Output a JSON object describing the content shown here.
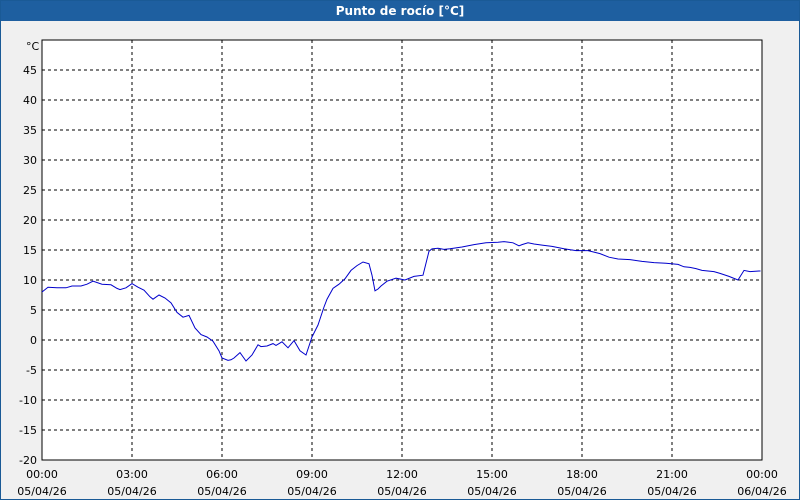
{
  "window": {
    "title": "Punto de rocío [°C]"
  },
  "chart_data": {
    "type": "line",
    "title": "Punto de rocío [°C]",
    "ylabel": "°C",
    "xlabel": "",
    "ylim": [
      -20,
      50
    ],
    "xlim": [
      0,
      24
    ],
    "y_ticks": [
      -20,
      -15,
      -10,
      -5,
      0,
      5,
      10,
      15,
      20,
      25,
      30,
      35,
      40,
      45
    ],
    "x_ticks": [
      {
        "time": "00:00",
        "date": "05/04/26"
      },
      {
        "time": "03:00",
        "date": "05/04/26"
      },
      {
        "time": "06:00",
        "date": "05/04/26"
      },
      {
        "time": "09:00",
        "date": "05/04/26"
      },
      {
        "time": "12:00",
        "date": "05/04/26"
      },
      {
        "time": "15:00",
        "date": "05/04/26"
      },
      {
        "time": "18:00",
        "date": "05/04/26"
      },
      {
        "time": "21:00",
        "date": "05/04/26"
      },
      {
        "time": "00:00",
        "date": "06/04/26"
      }
    ],
    "grid": true,
    "line_color": "#0000cc",
    "series": [
      {
        "x": [
          0.0,
          0.2,
          0.5,
          0.8,
          1.0,
          1.3,
          1.5,
          1.7,
          2.0,
          2.3,
          2.5,
          2.6,
          2.8,
          3.0,
          3.2,
          3.4,
          3.6,
          3.7,
          3.9,
          4.1,
          4.3,
          4.5,
          4.7,
          4.9,
          5.1,
          5.3,
          5.5,
          5.7,
          5.9,
          6.0,
          6.2,
          6.3,
          6.4,
          6.6,
          6.8,
          7.0,
          7.2,
          7.3,
          7.5,
          7.7,
          7.8,
          8.0,
          8.2,
          8.4,
          8.6,
          8.8,
          8.9,
          9.0,
          9.1,
          9.2,
          9.3,
          9.4,
          9.5,
          9.7,
          9.9,
          10.1,
          10.3,
          10.5,
          10.7,
          10.9,
          11.0,
          11.1,
          11.2,
          11.3,
          11.5,
          11.8,
          12.1,
          12.4,
          12.7,
          12.9,
          13.0,
          13.2,
          13.4,
          13.6,
          14.0,
          14.4,
          14.8,
          15.2,
          15.4,
          15.7,
          15.9,
          16.0,
          16.2,
          16.4,
          16.7,
          17.0,
          17.4,
          17.8,
          18.2,
          18.6,
          18.9,
          19.2,
          19.6,
          20.0,
          20.4,
          20.8,
          21.2,
          21.4,
          21.6,
          21.8,
          22.0,
          22.2,
          22.4,
          22.6,
          22.9,
          23.2,
          23.4,
          23.6,
          23.9,
          23.95
        ],
        "y": [
          8,
          8.8,
          8.7,
          8.7,
          9,
          9,
          9.3,
          9.8,
          9.3,
          9.2,
          8.6,
          8.4,
          8.7,
          9.4,
          8.8,
          8.3,
          7.2,
          6.8,
          7.5,
          7,
          6.2,
          4.6,
          3.8,
          4.1,
          2,
          0.9,
          0.5,
          -0.2,
          -1.8,
          -3,
          -3.4,
          -3.3,
          -3,
          -2.1,
          -3.5,
          -2.5,
          -0.8,
          -1.1,
          -1,
          -0.6,
          -0.9,
          -0.3,
          -1.3,
          -0.1,
          -1.8,
          -2.5,
          -1,
          0.5,
          1.5,
          2.5,
          4,
          5.5,
          6.8,
          8.6,
          9.3,
          10.2,
          11.6,
          12.4,
          13,
          12.7,
          10.8,
          8.2,
          8.5,
          9,
          9.8,
          10.3,
          10,
          10.6,
          10.8,
          14.8,
          15.2,
          15.3,
          15.1,
          15.2,
          15.5,
          15.9,
          16.2,
          16.3,
          16.4,
          16.2,
          15.7,
          15.9,
          16.2,
          16,
          15.8,
          15.6,
          15.2,
          14.9,
          14.9,
          14.4,
          13.8,
          13.5,
          13.4,
          13.1,
          12.9,
          12.8,
          12.6,
          12.2,
          12.1,
          11.9,
          11.6,
          11.5,
          11.4,
          11.1,
          10.6,
          10,
          11.6,
          11.4,
          11.5,
          11.5
        ]
      }
    ]
  }
}
